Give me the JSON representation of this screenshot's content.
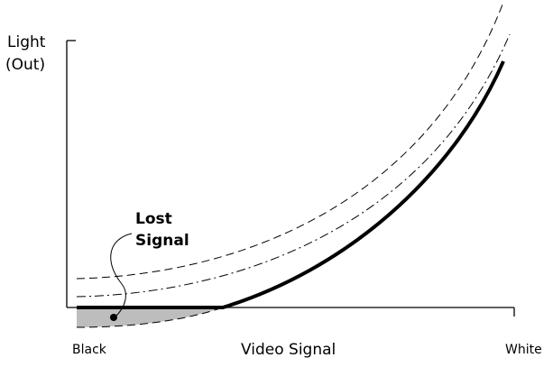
{
  "diagram": {
    "y_axis_label_line1": "Light",
    "y_axis_label_line2": "(Out)",
    "x_axis_label": "Video Signal",
    "x_left_label": "Black",
    "x_right_label": "White",
    "callout_line1": "Lost",
    "callout_line2": "Signal",
    "colors": {
      "lost_region": "#bdbdbd",
      "curve": "#000000"
    }
  }
}
